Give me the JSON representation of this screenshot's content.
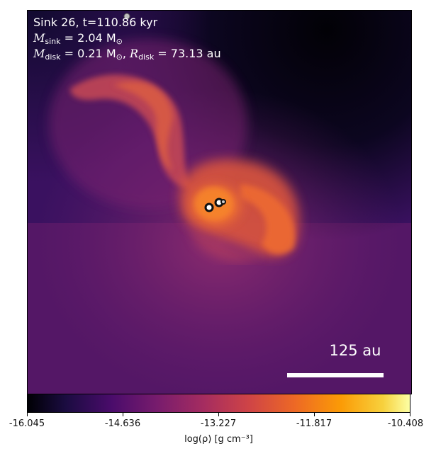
{
  "annotation": {
    "line1": "Sink 26, t=110.86 kyr",
    "msink_symbol": "M",
    "msink_sub": "sink",
    "msink_value": " = 2.04 M",
    "msink_unit_sub": "⊙",
    "mdisk_symbol": "M",
    "mdisk_sub": "disk",
    "mdisk_value": " = 0.21 M",
    "mdisk_unit_sub": "⊙",
    "rdisk_symbol": "R",
    "rdisk_sub": "disk",
    "rdisk_value": " = 73.13 au"
  },
  "scale_bar_label": "125 au",
  "colorbar": {
    "ticks": [
      "-16.045",
      "-14.636",
      "-13.227",
      "-11.817",
      "-10.408"
    ],
    "label": "log(ρ) [g cm⁻³]",
    "colormap": "inferno",
    "min": -16.045,
    "max": -10.408
  },
  "colors": {
    "background_dark": "#050308",
    "purple": "#45106a",
    "magenta": "#8c2b6e",
    "orange": "#e8632a",
    "bright_orange": "#f5812a"
  }
}
